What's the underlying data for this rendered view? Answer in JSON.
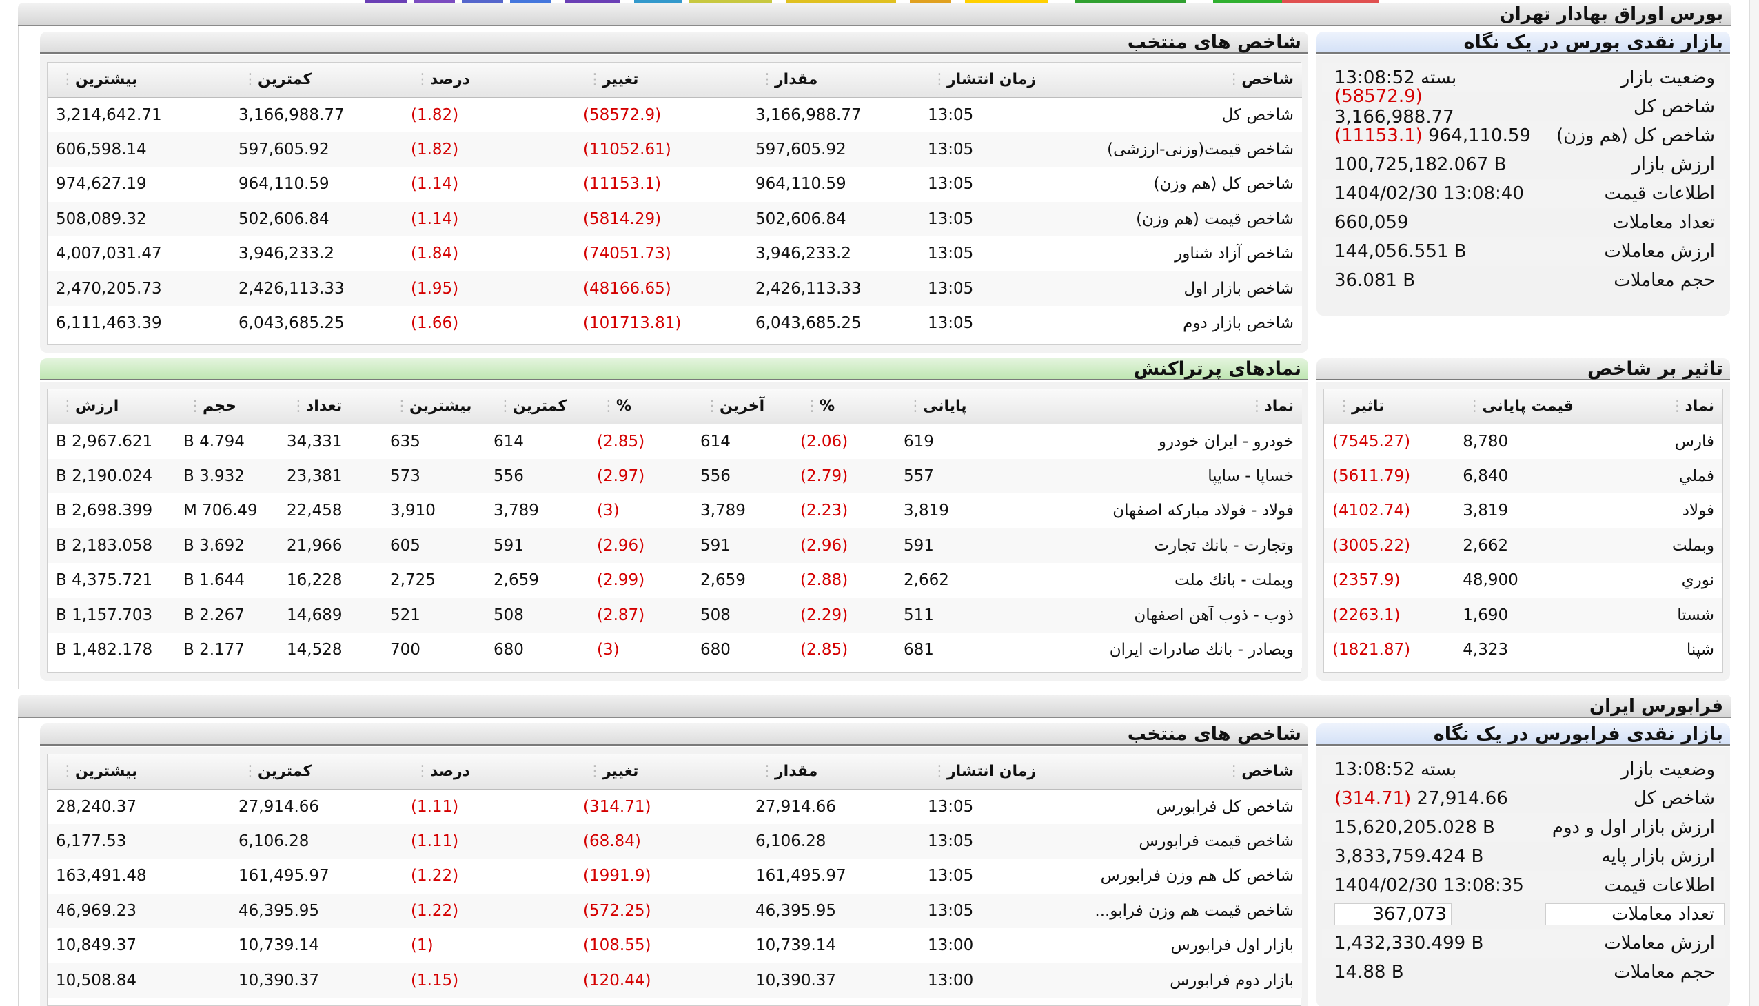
{
  "tse_section": {
    "title": "بورس اوراق بهادار تهران",
    "overview": {
      "title": "بازار نقدی بورس در یک نگاه",
      "rows": [
        {
          "label": "وضعیت بازار",
          "value": "بسته 13:08:52"
        },
        {
          "label": "شاخص کل",
          "value": "3,166,988.77",
          "change": "(58572.9)"
        },
        {
          "label": "شاخص کل (هم وزن)",
          "value": "964,110.59",
          "change": "(11153.1)"
        },
        {
          "label": "ارزش بازار",
          "value": "100,725,182.067 B"
        },
        {
          "label": "اطلاعات قیمت",
          "value": "1404/02/30 13:08:40"
        },
        {
          "label": "تعداد معاملات",
          "value": "660,059"
        },
        {
          "label": "ارزش معاملات",
          "value": "144,056.551 B"
        },
        {
          "label": "حجم معاملات",
          "value": "36.081 B"
        }
      ]
    },
    "indices": {
      "title": "شاخص های منتخب",
      "headers": [
        "شاخص",
        "زمان انتشار",
        "مقدار",
        "تغییر",
        "درصد",
        "کمترین",
        "بیشترین"
      ],
      "rows": [
        [
          "شاخص کل",
          "13:05",
          "3,166,988.77",
          "(58572.9)",
          "(1.82)",
          "3,166,988.77",
          "3,214,642.71"
        ],
        [
          "شاخص قیمت(وزنی-ارزشی)",
          "13:05",
          "597,605.92",
          "(11052.61)",
          "(1.82)",
          "597,605.92",
          "606,598.14"
        ],
        [
          "شاخص کل (هم وزن)",
          "13:05",
          "964,110.59",
          "(11153.1)",
          "(1.14)",
          "964,110.59",
          "974,627.19"
        ],
        [
          "شاخص قیمت (هم وزن)",
          "13:05",
          "502,606.84",
          "(5814.29)",
          "(1.14)",
          "502,606.84",
          "508,089.32"
        ],
        [
          "شاخص آزاد شناور",
          "13:05",
          "3,946,233.2",
          "(74051.73)",
          "(1.84)",
          "3,946,233.2",
          "4,007,031.47"
        ],
        [
          "شاخص بازار اول",
          "13:05",
          "2,426,113.33",
          "(48166.65)",
          "(1.95)",
          "2,426,113.33",
          "2,470,205.73"
        ],
        [
          "شاخص بازار دوم",
          "13:05",
          "6,043,685.25",
          "(101713.81)",
          "(1.66)",
          "6,043,685.25",
          "6,111,463.39"
        ]
      ]
    },
    "impact": {
      "title": "تاثیر بر شاخص",
      "headers": [
        "نماد",
        "قیمت پایانی",
        "تاثیر"
      ],
      "rows": [
        [
          "فارس",
          "8,780",
          "(7545.27)"
        ],
        [
          "فملي",
          "6,840",
          "(5611.79)"
        ],
        [
          "فولاد",
          "3,819",
          "(4102.74)"
        ],
        [
          "وبملت",
          "2,662",
          "(3005.22)"
        ],
        [
          "نوري",
          "48,900",
          "(2357.9)"
        ],
        [
          "شستا",
          "1,690",
          "(2263.1)"
        ],
        [
          "شپنا",
          "4,323",
          "(1821.87)"
        ]
      ]
    },
    "active": {
      "title": "نمادهای پرتراکنش",
      "headers": [
        "نماد",
        "پایانی",
        "%",
        "آخرین",
        "%",
        "کمترین",
        "بیشترین",
        "تعداد",
        "حجم",
        "ارزش"
      ],
      "rows": [
        [
          "خودرو - ایران خودرو",
          "619",
          "(2.06)",
          "614",
          "(2.85)",
          "614",
          "635",
          "34,331",
          "4.794 B",
          "2,967.621 B"
        ],
        [
          "خساپا - سایپا",
          "557",
          "(2.79)",
          "556",
          "(2.97)",
          "556",
          "573",
          "23,381",
          "3.932 B",
          "2,190.024 B"
        ],
        [
          "فولاد - فولاد مباركه اصفهان",
          "3,819",
          "(2.23)",
          "3,789",
          "(3)",
          "3,789",
          "3,910",
          "22,458",
          "706.49 M",
          "2,698.399 B"
        ],
        [
          "وتجارت - بانك تجارت",
          "591",
          "(2.96)",
          "591",
          "(2.96)",
          "591",
          "605",
          "21,966",
          "3.692 B",
          "2,183.058 B"
        ],
        [
          "وبملت - بانك ملت",
          "2,662",
          "(2.88)",
          "2,659",
          "(2.99)",
          "2,659",
          "2,725",
          "16,228",
          "1.644 B",
          "4,375.721 B"
        ],
        [
          "ذوب - ذوب آهن اصفهان",
          "511",
          "(2.29)",
          "508",
          "(2.87)",
          "508",
          "521",
          "14,689",
          "2.267 B",
          "1,157.703 B"
        ],
        [
          "وبصادر - بانك صادرات ايران",
          "681",
          "(2.85)",
          "680",
          "(3)",
          "680",
          "700",
          "14,528",
          "2.177 B",
          "1,482.178 B"
        ]
      ]
    }
  },
  "ifb_section": {
    "title": "فرابورس ایران",
    "overview": {
      "title": "بازار نقدی فرابورس در یک نگاه",
      "rows": [
        {
          "label": "وضعیت بازار",
          "value": "بسته 13:08:52"
        },
        {
          "label": "شاخص کل",
          "value": "27,914.66",
          "change": "(314.71)"
        },
        {
          "label": "ارزش بازار اول و دوم",
          "value": "15,620,205.028 B"
        },
        {
          "label": "ارزش بازار پایه",
          "value": "3,833,759.424 B"
        },
        {
          "label": "اطلاعات قیمت",
          "value": "1404/02/30 13:08:35"
        },
        {
          "label": "تعداد معاملات",
          "value": "367,073"
        },
        {
          "label": "ارزش معاملات",
          "value": "1,432,330.499 B"
        },
        {
          "label": "حجم معاملات",
          "value": "14.88 B"
        }
      ]
    },
    "indices": {
      "title": "شاخص های منتخب",
      "headers": [
        "شاخص",
        "زمان انتشار",
        "مقدار",
        "تغییر",
        "درصد",
        "کمترین",
        "بیشترین"
      ],
      "rows": [
        [
          "شاخص کل فرابورس",
          "13:05",
          "27,914.66",
          "(314.71)",
          "(1.11)",
          "27,914.66",
          "28,240.37"
        ],
        [
          "شاخص قیمت فرابورس",
          "13:05",
          "6,106.28",
          "(68.84)",
          "(1.11)",
          "6,106.28",
          "6,177.53"
        ],
        [
          "شاخص کل هم وزن فرابورس",
          "13:05",
          "161,495.97",
          "(1991.9)",
          "(1.22)",
          "161,495.97",
          "163,491.48"
        ],
        [
          "شاخص قیمت هم وزن فرابو...",
          "13:05",
          "46,395.95",
          "(572.25)",
          "(1.22)",
          "46,395.95",
          "46,969.23"
        ],
        [
          "بازار اول فرابورس",
          "13:00",
          "10,739.14",
          "(108.55)",
          "(1)",
          "10,739.14",
          "10,849.37"
        ],
        [
          "بازار دوم فرابورس",
          "13:00",
          "10,390.37",
          "(120.44)",
          "(1.15)",
          "10,390.37",
          "10,508.84"
        ]
      ]
    }
  },
  "colors": {
    "negative": "#d40000",
    "overview_header": "#d4e1f7",
    "active_header": "#bfe6b2",
    "panel_header": "#dcdcdc"
  }
}
